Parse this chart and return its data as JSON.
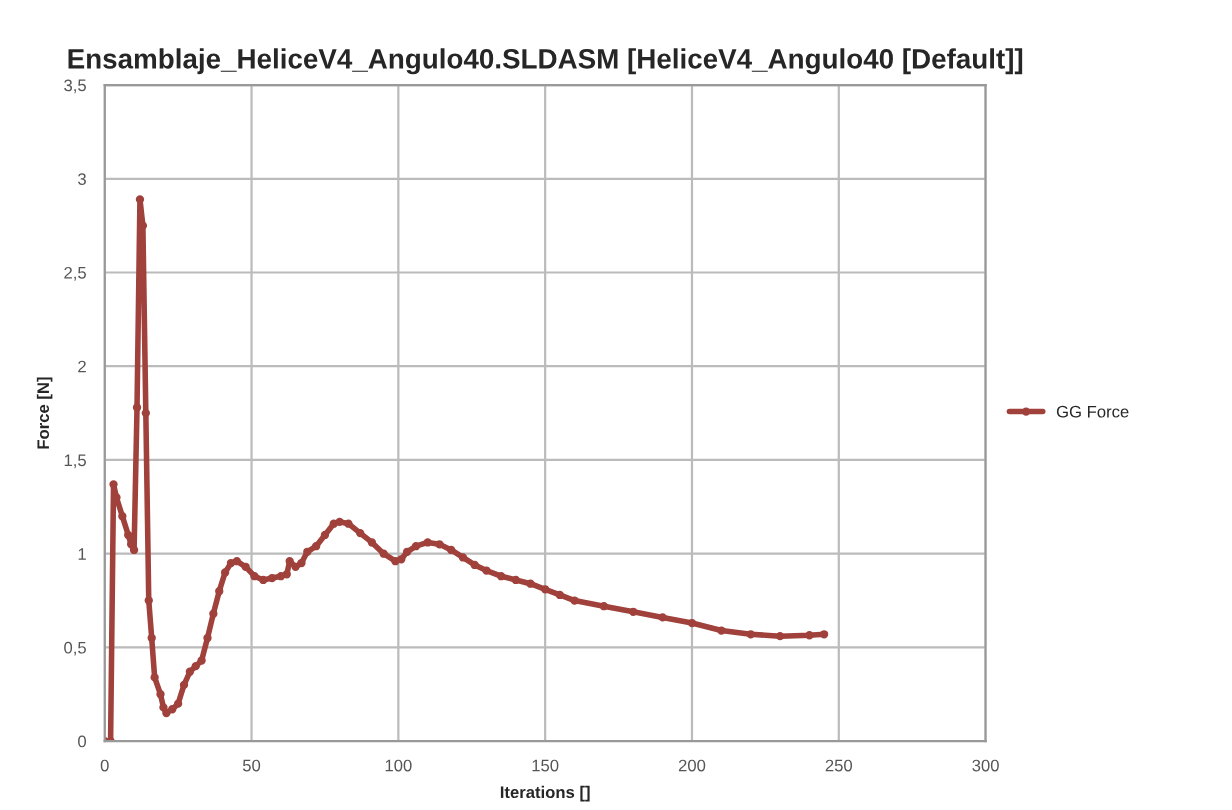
{
  "chart_data": {
    "type": "line",
    "title": "Ensamblaje_HeliceV4_Angulo40.SLDASM [HeliceV4_Angulo40 [Default]]",
    "xlabel": "Iterations []",
    "ylabel": "Force [N]",
    "series": [
      {
        "name": "GG Force",
        "color": "#a0413c",
        "x": [
          0,
          2,
          3,
          4,
          6,
          8,
          9,
          10,
          11,
          12,
          13,
          14,
          15,
          16,
          17,
          19,
          20,
          21,
          23,
          25,
          27,
          29,
          31,
          33,
          35,
          37,
          39,
          41,
          43,
          45,
          48,
          51,
          54,
          57,
          60,
          62,
          63,
          65,
          67,
          69,
          72,
          75,
          78,
          80,
          83,
          87,
          91,
          95,
          99,
          101,
          103,
          106,
          110,
          114,
          118,
          122,
          126,
          130,
          135,
          140,
          145,
          150,
          155,
          160,
          170,
          180,
          190,
          200,
          210,
          220,
          230,
          240,
          245
        ],
        "values": [
          0,
          0,
          1.37,
          1.3,
          1.2,
          1.1,
          1.05,
          1.02,
          1.78,
          2.89,
          2.75,
          1.75,
          0.75,
          0.55,
          0.34,
          0.25,
          0.18,
          0.15,
          0.17,
          0.2,
          0.3,
          0.37,
          0.4,
          0.43,
          0.55,
          0.68,
          0.8,
          0.9,
          0.95,
          0.96,
          0.93,
          0.88,
          0.86,
          0.87,
          0.88,
          0.89,
          0.96,
          0.93,
          0.95,
          1.01,
          1.04,
          1.1,
          1.16,
          1.17,
          1.16,
          1.11,
          1.06,
          1.0,
          0.96,
          0.97,
          1.01,
          1.04,
          1.06,
          1.05,
          1.02,
          0.98,
          0.94,
          0.91,
          0.88,
          0.86,
          0.84,
          0.81,
          0.78,
          0.75,
          0.72,
          0.69,
          0.66,
          0.63,
          0.59,
          0.57,
          0.56,
          0.565,
          0.57
        ]
      }
    ],
    "xlim": [
      0,
      300
    ],
    "xticks": [
      0,
      50,
      100,
      150,
      200,
      250,
      300
    ],
    "ylim": [
      0,
      3.5
    ],
    "yticks": [
      0,
      {
        "value": 0.5,
        "label": "0,5"
      },
      1,
      {
        "value": 1.5,
        "label": "1,5"
      },
      2,
      {
        "value": 2.5,
        "label": "2,5"
      },
      3,
      {
        "value": 3.5,
        "label": "3,5"
      }
    ],
    "grid": true,
    "legend": "right",
    "marker": "circle",
    "line_style": "solid"
  }
}
